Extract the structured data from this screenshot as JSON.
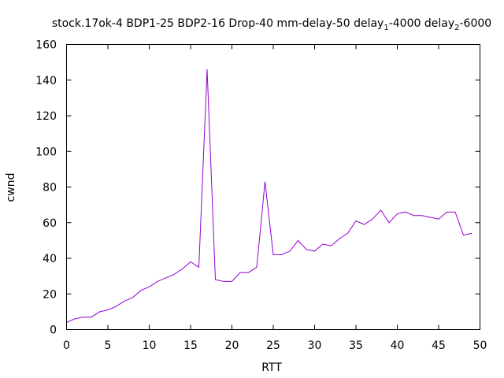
{
  "chart_data": {
    "type": "line",
    "title_parts": {
      "main": "stock.17ok-4 BDP1-25 BDP2-16 Drop-40 mm-delay-50 delay",
      "sub1": "1",
      "mid": "-4000 delay",
      "sub2": "2",
      "end": "-6000"
    },
    "xlabel": "RTT",
    "ylabel": "cwnd",
    "xlim": [
      0,
      50
    ],
    "ylim": [
      0,
      160
    ],
    "xticks": [
      "0",
      "5",
      "10",
      "15",
      "20",
      "25",
      "30",
      "35",
      "40",
      "45",
      "50"
    ],
    "yticks": [
      "0",
      "20",
      "40",
      "60",
      "80",
      "100",
      "120",
      "140",
      "160"
    ],
    "grid": false,
    "legend": "none",
    "series": [
      {
        "color": "#9400d3",
        "x": [
          0,
          1,
          2,
          3,
          4,
          5,
          6,
          7,
          8,
          9,
          10,
          11,
          12,
          13,
          14,
          15,
          16,
          17,
          18,
          19,
          20,
          21,
          22,
          23,
          24,
          25,
          26,
          27,
          28,
          29,
          30,
          31,
          32,
          33,
          34,
          35,
          36,
          37,
          38,
          39,
          40,
          41,
          42,
          43,
          44,
          45,
          46,
          47,
          48,
          49
        ],
        "y": [
          4,
          6,
          7,
          7,
          10,
          11,
          13,
          16,
          18,
          22,
          24,
          27,
          29,
          31,
          34,
          38,
          35,
          146,
          28,
          27,
          27,
          32,
          32,
          35,
          83,
          42,
          42,
          44,
          50,
          45,
          44,
          48,
          47,
          51,
          54,
          61,
          59,
          62,
          67,
          60,
          65,
          66,
          64,
          64,
          63,
          62,
          66,
          66,
          53,
          54
        ]
      }
    ]
  }
}
